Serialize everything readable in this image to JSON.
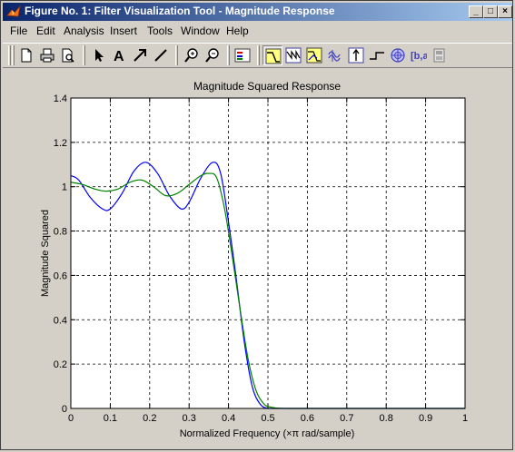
{
  "window": {
    "title": "Figure No. 1: Filter Visualization Tool - Magnitude Response",
    "controls": {
      "minimize": "_",
      "maximize": "□",
      "close": "×"
    }
  },
  "menu": [
    "File",
    "Edit",
    "Analysis",
    "Insert",
    "Tools",
    "Window",
    "Help"
  ],
  "toolbar": [
    "new-figure-icon",
    "print-icon",
    "print-preview-icon",
    "select-arrow-icon",
    "insert-text-icon",
    "insert-arrow-icon",
    "insert-line-icon",
    "zoom-in-icon",
    "zoom-out-icon",
    "legend-icon",
    "magnitude-response-icon",
    "phase-response-icon",
    "magnitude-phase-icon",
    "group-delay-icon",
    "impulse-response-icon",
    "step-response-icon",
    "pole-zero-icon",
    "filter-coefficients-icon",
    "filter-info-icon"
  ],
  "chart_data": {
    "type": "line",
    "title": "Magnitude Squared Response",
    "xlabel": "Normalized Frequency  (×π rad/sample)",
    "ylabel": "Magnitude Squared",
    "xlim": [
      0,
      1
    ],
    "ylim": [
      0,
      1.4
    ],
    "xticks": [
      "0",
      "0.1",
      "0.2",
      "0.3",
      "0.4",
      "0.5",
      "0.6",
      "0.7",
      "0.8",
      "0.9",
      "1"
    ],
    "yticks": [
      "0",
      "0.2",
      "0.4",
      "0.6",
      "0.8",
      "1",
      "1.2",
      "1.4"
    ],
    "grid": true,
    "series": [
      {
        "color": "#0000ff",
        "x": [
          0,
          0.02,
          0.05,
          0.08,
          0.1,
          0.13,
          0.16,
          0.19,
          0.22,
          0.25,
          0.28,
          0.3,
          0.33,
          0.36,
          0.38,
          0.4,
          0.42,
          0.44,
          0.46,
          0.48,
          0.5,
          0.52,
          0.6,
          0.8,
          1.0
        ],
        "y": [
          1.05,
          1.03,
          0.95,
          0.9,
          0.9,
          0.97,
          1.07,
          1.11,
          1.06,
          0.96,
          0.9,
          0.93,
          1.04,
          1.11,
          1.06,
          0.84,
          0.58,
          0.3,
          0.1,
          0.02,
          0.0,
          0.0,
          0.0,
          0.0,
          0.0
        ]
      },
      {
        "color": "#008000",
        "x": [
          0,
          0.03,
          0.06,
          0.09,
          0.12,
          0.15,
          0.18,
          0.21,
          0.24,
          0.27,
          0.3,
          0.33,
          0.35,
          0.37,
          0.39,
          0.41,
          0.43,
          0.45,
          0.47,
          0.49,
          0.51,
          0.55,
          0.7,
          1.0
        ],
        "y": [
          1.02,
          1.01,
          0.99,
          0.98,
          0.99,
          1.02,
          1.03,
          1.0,
          0.96,
          0.97,
          1.01,
          1.05,
          1.06,
          1.04,
          0.9,
          0.68,
          0.44,
          0.22,
          0.08,
          0.02,
          0.005,
          0.0,
          0.0,
          0.0
        ]
      }
    ]
  }
}
